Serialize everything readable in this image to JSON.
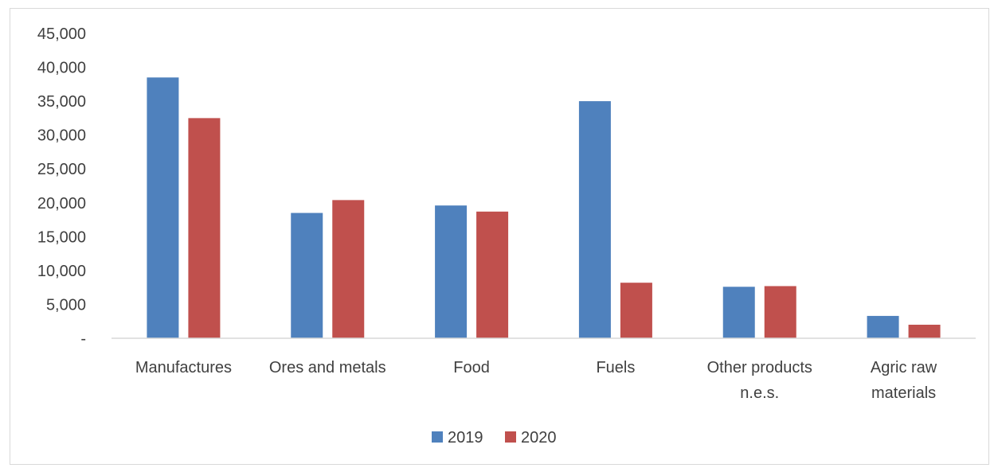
{
  "chart_data": {
    "type": "bar",
    "categories": [
      [
        "Manufactures"
      ],
      [
        "Ores and metals"
      ],
      [
        "Food"
      ],
      [
        "Fuels"
      ],
      [
        "Other products",
        "n.e.s."
      ],
      [
        "Agric raw",
        "materials"
      ]
    ],
    "series": [
      {
        "name": "2019",
        "color": "#4f81bd",
        "values": [
          38500,
          18500,
          19600,
          35000,
          7600,
          3300
        ]
      },
      {
        "name": "2020",
        "color": "#c0504d",
        "values": [
          32500,
          20400,
          18700,
          8200,
          7700,
          2000
        ]
      }
    ],
    "ylim": [
      0,
      45000
    ],
    "y_ticks": [
      {
        "value": 0,
        "label": "-"
      },
      {
        "value": 5000,
        "label": "5,000"
      },
      {
        "value": 10000,
        "label": "10,000"
      },
      {
        "value": 15000,
        "label": "15,000"
      },
      {
        "value": 20000,
        "label": "20,000"
      },
      {
        "value": 25000,
        "label": "25,000"
      },
      {
        "value": 30000,
        "label": "30,000"
      },
      {
        "value": 35000,
        "label": "35,000"
      },
      {
        "value": 40000,
        "label": "40,000"
      },
      {
        "value": 45000,
        "label": "45,000"
      }
    ],
    "grid": false,
    "legend": "bottom-center",
    "title": "",
    "xlabel": "",
    "ylabel": ""
  }
}
